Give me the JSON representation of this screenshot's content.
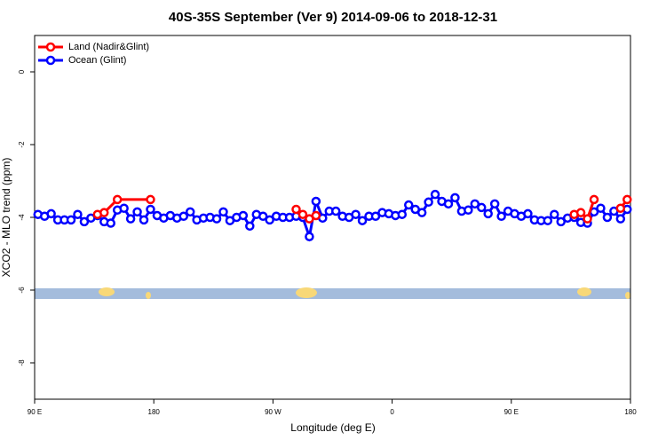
{
  "chart_data": {
    "type": "line",
    "title": "40S-35S September (Ver 9)   2014-09-06 to 2018-12-31",
    "x_label": "Longitude (deg E)",
    "y_label": "XCO2 - MLO trend (ppm)",
    "xlim": [
      90,
      540
    ],
    "ylim": [
      -9,
      1
    ],
    "xticks": [
      {
        "value": 90,
        "label": "90 E"
      },
      {
        "value": 180,
        "label": "180"
      },
      {
        "value": 270,
        "label": "90 W"
      },
      {
        "value": 360,
        "label": "0"
      },
      {
        "value": 450,
        "label": "90 E"
      },
      {
        "value": 540,
        "label": "180"
      }
    ],
    "yticks": [
      0,
      -2,
      -4,
      -6,
      -8
    ],
    "legend": "top-left",
    "series": [
      {
        "name": "Land (Nadir&Glint)",
        "color": "#ff0000",
        "x": [
          137.5,
          142.5,
          152.5,
          177.5,
          200,
          287.5,
          292.5,
          297.5,
          302.5,
          400,
          497.5,
          502.5,
          507.5,
          512.5,
          520,
          532.5,
          537.5
        ],
        "values": [
          -3.92,
          -3.87,
          -3.51,
          -3.51,
          null,
          -3.78,
          -3.92,
          -4.04,
          -3.95,
          null,
          -3.92,
          -3.87,
          -4.04,
          -3.51,
          null,
          -3.75,
          -3.51
        ]
      },
      {
        "name": "Ocean (Glint)",
        "color": "#0000ff",
        "x": [
          92.5,
          97.5,
          102.5,
          107.5,
          112.5,
          117.5,
          122.5,
          127.5,
          132.5,
          137.5,
          142.5,
          147.5,
          152.5,
          157.5,
          162.5,
          167.5,
          172.5,
          177.5,
          182.5,
          187.5,
          192.5,
          197.5,
          202.5,
          207.5,
          212.5,
          217.5,
          222.5,
          227.5,
          232.5,
          237.5,
          242.5,
          247.5,
          252.5,
          257.5,
          262.5,
          267.5,
          272.5,
          277.5,
          282.5,
          287.5,
          292.5,
          297.5,
          302.5,
          307.5,
          312.5,
          317.5,
          322.5,
          327.5,
          332.5,
          337.5,
          342.5,
          347.5,
          352.5,
          357.5,
          362.5,
          367.5,
          372.5,
          377.5,
          382.5,
          387.5,
          392.5,
          397.5,
          402.5,
          407.5,
          412.5,
          417.5,
          422.5,
          427.5,
          432.5,
          437.5,
          442.5,
          447.5,
          452.5,
          457.5,
          462.5,
          467.5,
          472.5,
          477.5,
          482.5,
          487.5,
          492.5,
          497.5,
          502.5,
          507.5,
          512.5,
          517.5,
          522.5,
          527.5,
          532.5,
          537.5
        ],
        "values": [
          -3.92,
          -3.97,
          -3.9,
          -4.07,
          -4.07,
          -4.07,
          -3.92,
          -4.12,
          -4.02,
          -3.95,
          -4.12,
          -4.16,
          -3.8,
          -3.75,
          -4.04,
          -3.85,
          -4.07,
          -3.78,
          -3.95,
          -4.02,
          -3.95,
          -4.02,
          -3.97,
          -3.85,
          -4.07,
          -4.02,
          -4.0,
          -4.04,
          -3.85,
          -4.09,
          -4.0,
          -3.95,
          -4.24,
          -3.92,
          -3.97,
          -4.07,
          -3.97,
          -4.0,
          -4.0,
          -3.97,
          -4.0,
          -4.53,
          -3.56,
          -4.02,
          -3.83,
          -3.83,
          -3.97,
          -4.0,
          -3.92,
          -4.09,
          -3.97,
          -3.97,
          -3.87,
          -3.9,
          -3.95,
          -3.92,
          -3.66,
          -3.78,
          -3.87,
          -3.58,
          -3.37,
          -3.56,
          -3.63,
          -3.46,
          -3.83,
          -3.8,
          -3.63,
          -3.73,
          -3.9,
          -3.63,
          -3.97,
          -3.83,
          -3.9,
          -3.97,
          -3.9,
          -4.07,
          -4.09,
          -4.09,
          -3.92,
          -4.12,
          -4.02,
          -4.0,
          -4.14,
          -4.16,
          -3.85,
          -3.75,
          -4.0,
          -3.83,
          -4.04,
          -3.78
        ]
      }
    ]
  }
}
